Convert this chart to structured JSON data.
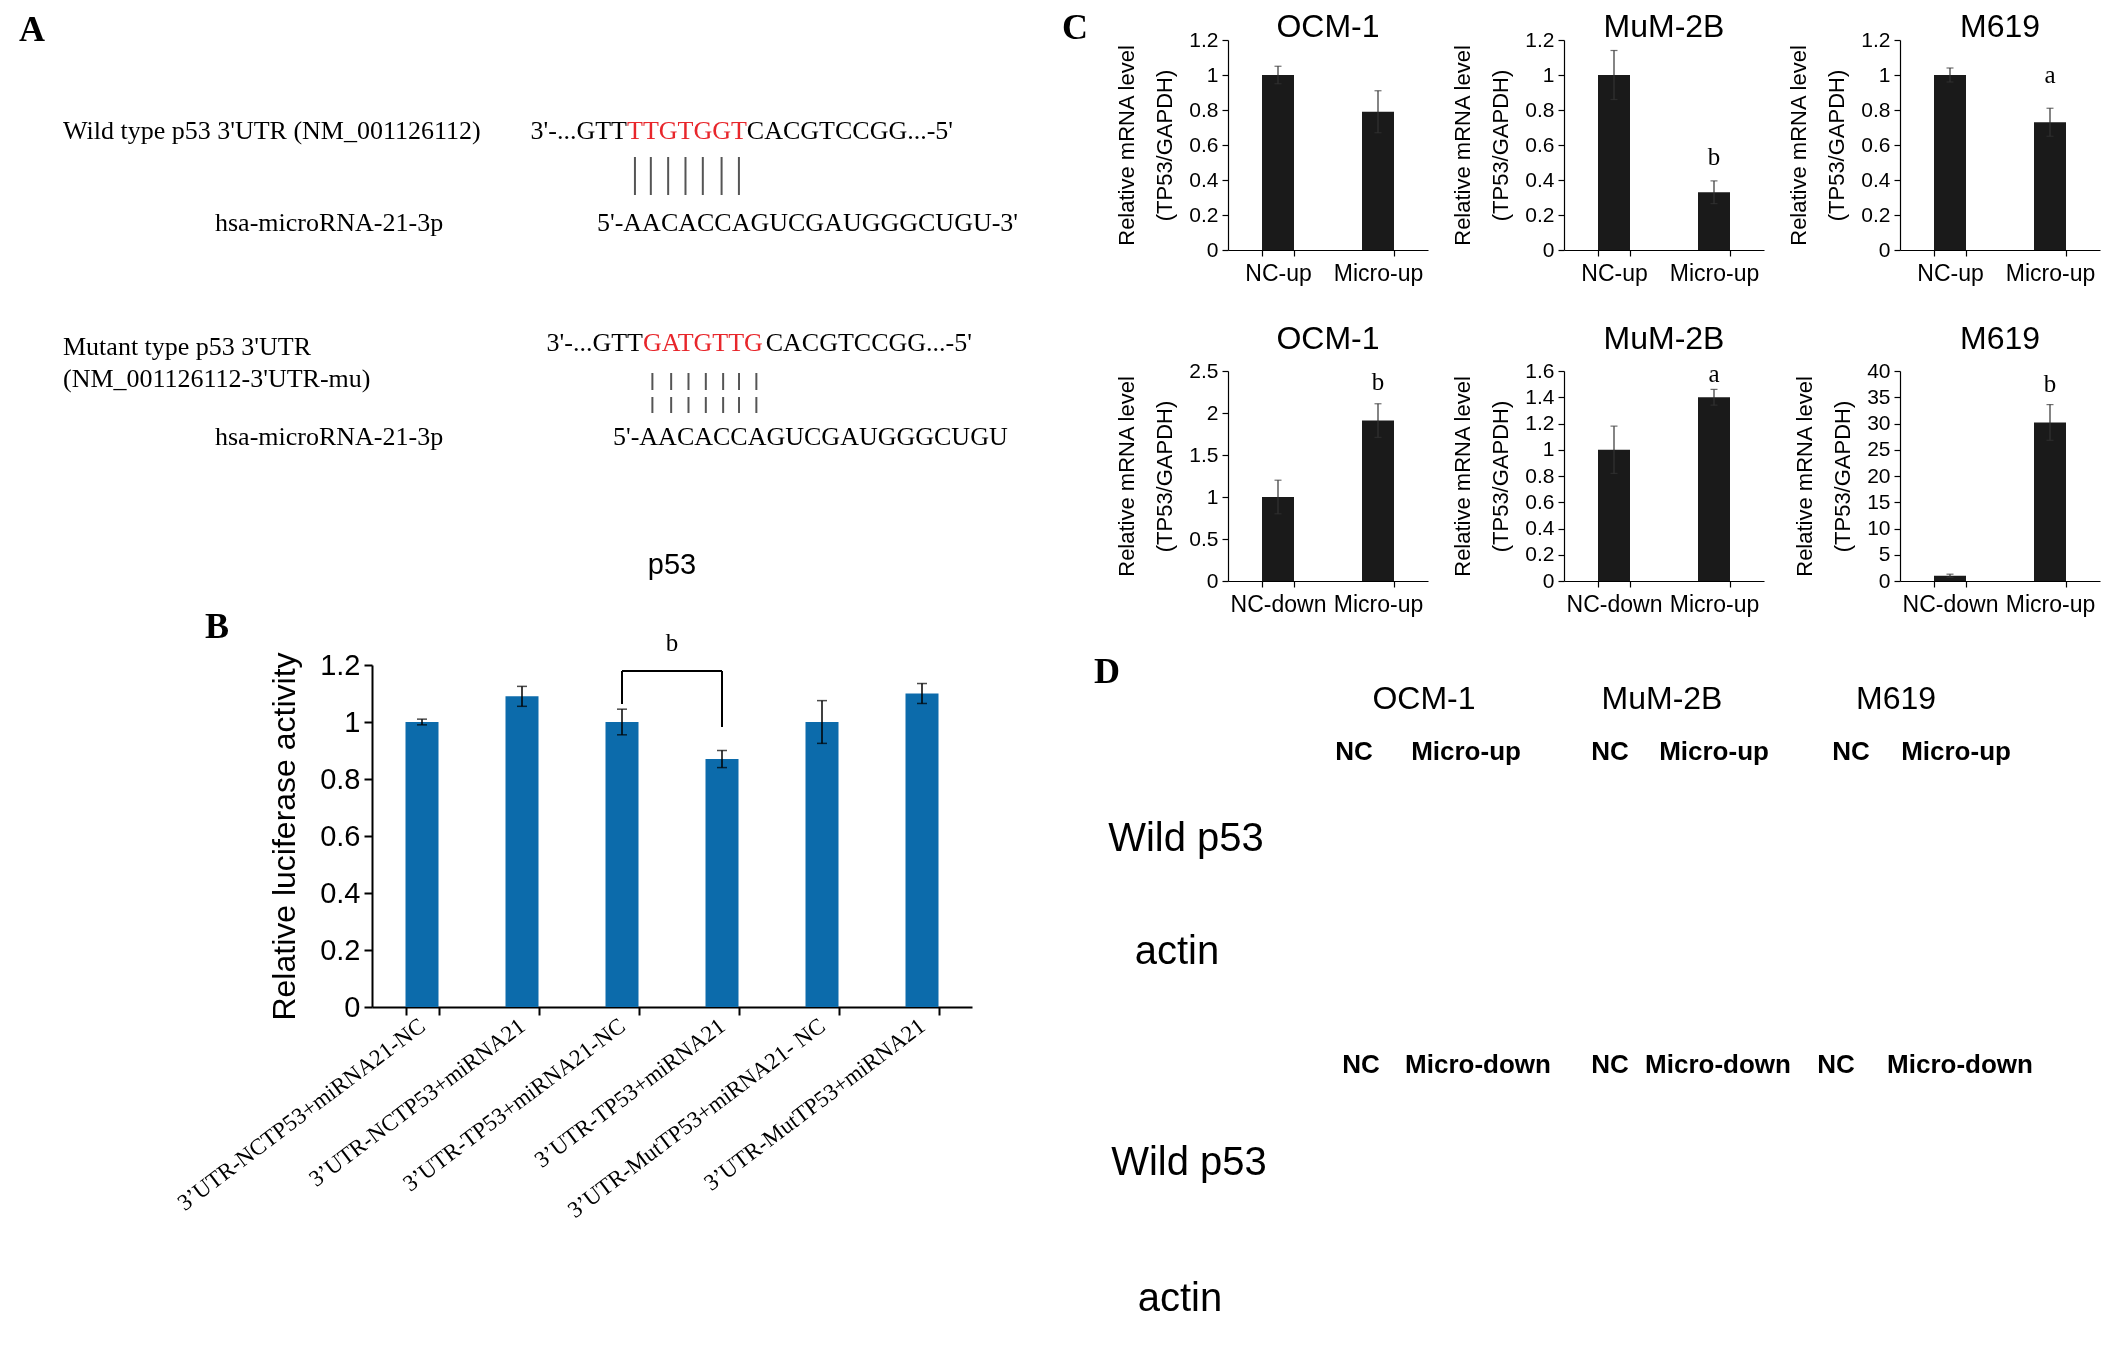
{
  "chart_data": [
    {
      "type": "other",
      "annotations": [
        "A",
        "Wild type p53 3'UTR (NM_001126112)",
        "3'-...GTT",
        "TTGTGGT",
        "CACGTCCGG...-5'",
        "hsa-microRNA-21-3p",
        "5'-AACACCAGUCGAUGGGCUGU-3'",
        "Mutant type p53 3'UTR",
        "(NM_001126112-3'UTR-mu)",
        "3'-...GTT",
        "GATGTTG",
        "CACGTCCGG...-5'",
        "hsa-microRNA-21-3p",
        "5'-AACACCAGUCGAUGGGCUGU",
        "C"
      ],
      "colors": [
        "#000000",
        "#000000",
        "#000000",
        "#e8262b",
        "#000000",
        "#000000",
        "#000000",
        "#000000",
        "#000000",
        "#000000",
        "#e8262b",
        "#000000",
        "#000000",
        "#000000",
        "#000000"
      ]
    },
    {
      "type": "bar",
      "title": "p53",
      "ylabel": "Relative luciferase activity",
      "categories": [
        "3’UTR-NCTP53+miRNA21-NC",
        "3’UTR-NCTP53+miRNA21",
        "3’UTR-TP53+miRNA21-NC",
        "3’UTR-TP53+miRNA21",
        "3’UTR-MutTP53+miRNA21- NC",
        "3’UTR-MutTP53+miRNA21"
      ],
      "values": [
        1.0,
        1.09,
        1.0,
        0.87,
        1.0,
        1.1
      ],
      "errors": [
        0.01,
        0.035,
        0.045,
        0.03,
        0.075,
        0.035
      ],
      "color": "#0c6bab",
      "ylim": [
        0,
        1.2
      ],
      "yticks": [
        0,
        0.2,
        0.4,
        0.6,
        0.8,
        1,
        1.2
      ],
      "annotations": [
        "B",
        "b"
      ]
    },
    {
      "type": "bar",
      "title": "OCM-1",
      "ylabel": "Relative mRNA level\n(TP53/GAPDH)",
      "categories": [
        "NC-up",
        "Micro-up"
      ],
      "values": [
        1.0,
        0.79
      ],
      "errors": [
        0.05,
        0.12
      ],
      "color": "#1a1a1a",
      "ylim": [
        0,
        1.2
      ],
      "yticks": [
        0,
        0.2,
        0.4,
        0.6,
        0.8,
        1,
        1.2
      ]
    },
    {
      "type": "bar",
      "title": "MuM-2B",
      "ylabel": "Relative mRNA level\n(TP53/GAPDH)",
      "categories": [
        "NC-up",
        "Micro-up"
      ],
      "values": [
        1.0,
        0.33
      ],
      "errors": [
        0.14,
        0.065
      ],
      "color": "#1a1a1a",
      "ylim": [
        0,
        1.2
      ],
      "yticks": [
        0,
        0.2,
        0.4,
        0.6,
        0.8,
        1,
        1.2
      ],
      "annotations": [
        "b"
      ]
    },
    {
      "type": "bar",
      "title": "M619",
      "ylabel": "Relative mRNA level\n(TP53/GAPDH)",
      "categories": [
        "NC-up",
        "Micro-up"
      ],
      "values": [
        1.0,
        0.73
      ],
      "errors": [
        0.04,
        0.08
      ],
      "color": "#1a1a1a",
      "ylim": [
        0,
        1.2
      ],
      "yticks": [
        0,
        0.2,
        0.4,
        0.6,
        0.8,
        1,
        1.2
      ],
      "annotations": [
        "a"
      ]
    },
    {
      "type": "bar",
      "title": "OCM-1",
      "ylabel": "Relative mRNA level\n(TP53/GAPDH)",
      "categories": [
        "NC-down",
        "Micro-up"
      ],
      "values": [
        1.0,
        1.91
      ],
      "errors": [
        0.2,
        0.2
      ],
      "color": "#1a1a1a",
      "ylim": [
        0,
        2.5
      ],
      "yticks": [
        0,
        0.5,
        1,
        1.5,
        2,
        2.5
      ],
      "annotations": [
        "b"
      ]
    },
    {
      "type": "bar",
      "title": "MuM-2B",
      "ylabel": "Relative mRNA level\n(TP53/GAPDH)",
      "categories": [
        "NC-down",
        "Micro-up"
      ],
      "values": [
        1.0,
        1.4
      ],
      "errors": [
        0.18,
        0.06
      ],
      "color": "#1a1a1a",
      "ylim": [
        0,
        1.6
      ],
      "yticks": [
        0,
        0.2,
        0.4,
        0.6,
        0.8,
        1,
        1.2,
        1.4,
        1.6
      ],
      "annotations": [
        "a"
      ]
    },
    {
      "type": "bar",
      "title": "M619",
      "ylabel": "Relative mRNA level\n(TP53/GAPDH)",
      "categories": [
        "NC-down",
        "Micro-up"
      ],
      "values": [
        1.0,
        30.2
      ],
      "errors": [
        0.3,
        3.4
      ],
      "color": "#1a1a1a",
      "ylim": [
        0,
        40
      ],
      "yticks": [
        0,
        5,
        10,
        15,
        20,
        25,
        30,
        35,
        40
      ],
      "annotations": [
        "b"
      ]
    },
    {
      "type": "other",
      "annotations": [
        "D",
        "OCM-1",
        "MuM-2B",
        "M619",
        "NC",
        "Micro-up",
        "NC",
        "Micro-up",
        "NC",
        "Micro-up",
        "Wild p53",
        "actin",
        "NC",
        "Micro-down",
        "NC",
        "Micro-down",
        "NC",
        "Micro-down",
        "Wild p53",
        "actin"
      ]
    }
  ]
}
